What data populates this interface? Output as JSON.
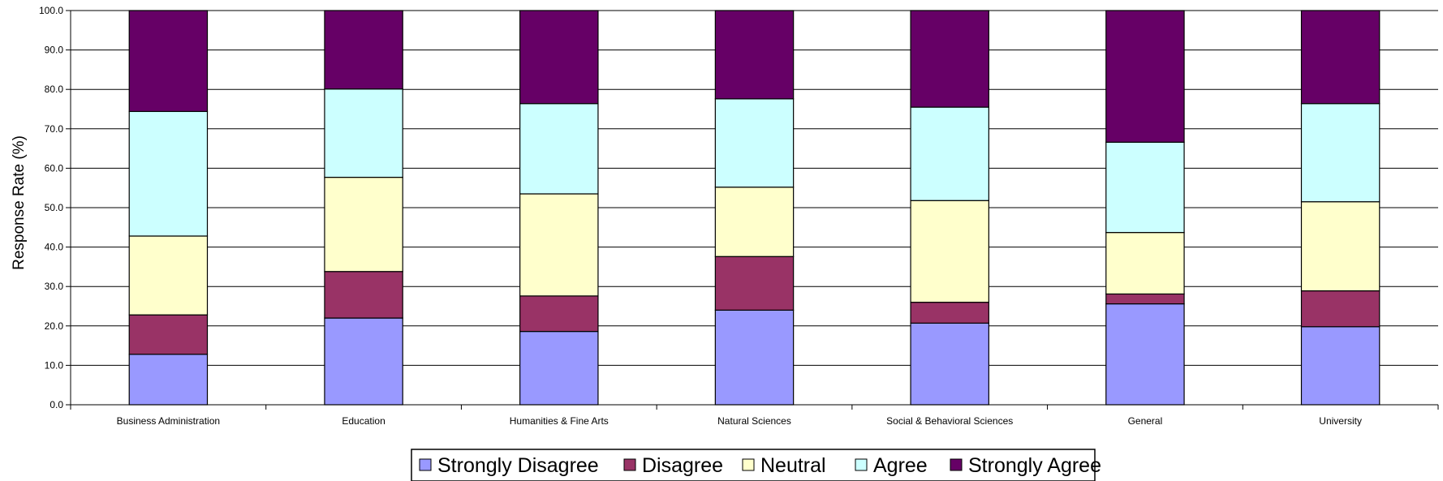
{
  "chart_data": {
    "type": "bar",
    "stacked": true,
    "ylabel": "Response Rate (%)",
    "xlabel": "",
    "ylim": [
      0,
      100
    ],
    "yticks": [
      "0.0",
      "10.0",
      "20.0",
      "30.0",
      "40.0",
      "50.0",
      "60.0",
      "70.0",
      "80.0",
      "90.0",
      "100.0"
    ],
    "grid": true,
    "legend_position": "bottom",
    "categories": [
      "Business Administration",
      "Education",
      "Humanities & Fine Arts",
      "Natural Sciences",
      "Social & Behavioral Sciences",
      "General",
      "University"
    ],
    "series": [
      {
        "name": "Strongly Disagree",
        "color": "#9999ff",
        "values": [
          12.8,
          22.0,
          18.6,
          24.0,
          20.7,
          25.6,
          19.8
        ]
      },
      {
        "name": "Disagree",
        "color": "#993366",
        "values": [
          10.0,
          11.8,
          9.0,
          13.6,
          5.3,
          2.5,
          9.1
        ]
      },
      {
        "name": "Neutral",
        "color": "#ffffcc",
        "values": [
          20.0,
          23.9,
          25.9,
          17.6,
          25.8,
          15.6,
          22.6
        ]
      },
      {
        "name": "Agree",
        "color": "#ccffff",
        "values": [
          31.6,
          22.4,
          22.9,
          22.4,
          23.7,
          22.9,
          24.9
        ]
      },
      {
        "name": "Strongly Agree",
        "color": "#660066",
        "values": [
          25.6,
          19.9,
          23.6,
          22.4,
          24.5,
          33.4,
          23.6
        ]
      }
    ]
  }
}
